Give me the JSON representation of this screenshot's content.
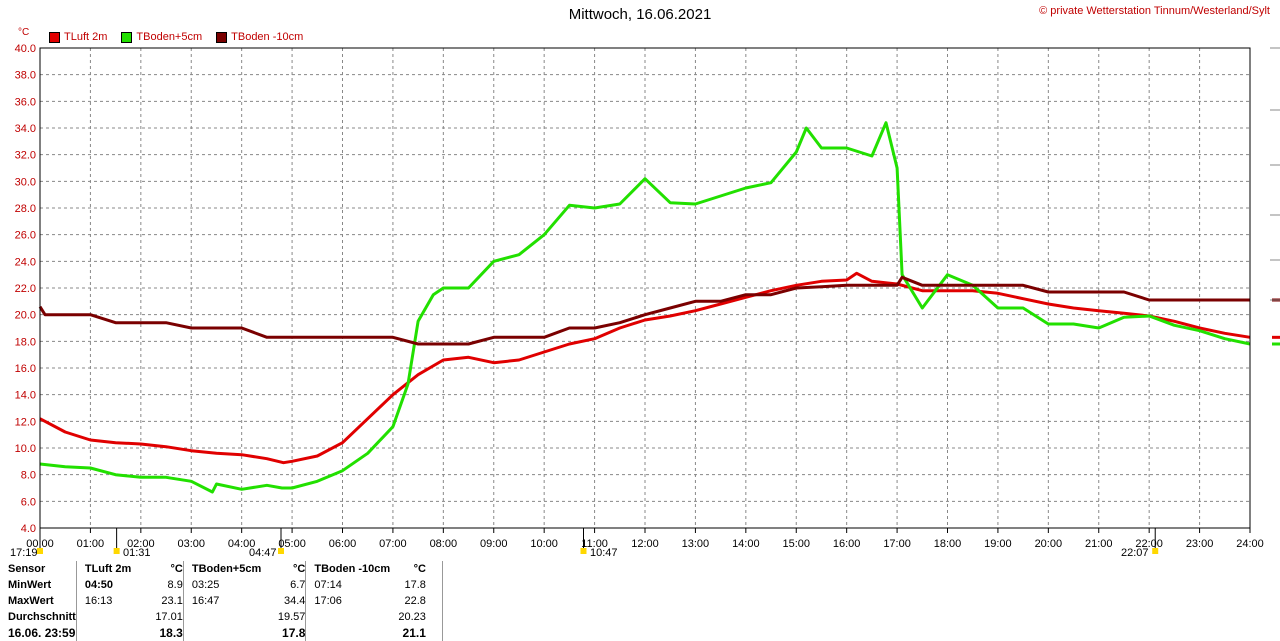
{
  "title": "Mittwoch, 16.06.2021",
  "copyright": "© private Wetterstation Tinnum/Westerland/Sylt",
  "unit": "°C",
  "legend": [
    {
      "name": "TLuft 2m",
      "color": "#e00000"
    },
    {
      "name": "TBoden+5cm",
      "color": "#22e000"
    },
    {
      "name": "TBoden -10cm",
      "color": "#7a0000"
    }
  ],
  "markers": [
    {
      "label": "17:19",
      "hour": 0.0
    },
    {
      "label": "01:31",
      "hour": 1.52
    },
    {
      "label": "04:47",
      "hour": 4.78
    },
    {
      "label": "10:47",
      "hour": 10.78
    },
    {
      "label": "22:07",
      "hour": 22.12
    }
  ],
  "chart_data": {
    "type": "line",
    "xlim": [
      0,
      24
    ],
    "ylim": [
      4,
      40
    ],
    "x_ticks": [
      "00:00",
      "01:00",
      "02:00",
      "03:00",
      "04:00",
      "05:00",
      "06:00",
      "07:00",
      "08:00",
      "09:00",
      "10:00",
      "11:00",
      "12:00",
      "13:00",
      "14:00",
      "15:00",
      "16:00",
      "17:00",
      "18:00",
      "19:00",
      "20:00",
      "21:00",
      "22:00",
      "23:00",
      "24:00"
    ],
    "y_ticks": [
      "4.0",
      "6.0",
      "8.0",
      "10.0",
      "12.0",
      "14.0",
      "16.0",
      "18.0",
      "20.0",
      "22.0",
      "24.0",
      "26.0",
      "28.0",
      "30.0",
      "32.0",
      "34.0",
      "36.0",
      "38.0",
      "40.0"
    ],
    "grid": true,
    "series": [
      {
        "name": "TLuft 2m",
        "color": "#e00000",
        "x": [
          0,
          0.5,
          1,
          1.5,
          2,
          2.5,
          3,
          3.5,
          4,
          4.5,
          4.83,
          5,
          5.5,
          6,
          6.5,
          7,
          7.5,
          8,
          8.5,
          9,
          9.5,
          10,
          10.5,
          11,
          11.5,
          12,
          12.5,
          13,
          13.5,
          14,
          14.5,
          15,
          15.5,
          16,
          16.2,
          16.5,
          17,
          17.5,
          18,
          18.5,
          19,
          19.5,
          20,
          20.5,
          21,
          21.5,
          22,
          22.5,
          23,
          23.5,
          24
        ],
        "y": [
          12.2,
          11.2,
          10.6,
          10.4,
          10.3,
          10.1,
          9.8,
          9.6,
          9.5,
          9.2,
          8.9,
          9.0,
          9.4,
          10.4,
          12.2,
          14.0,
          15.5,
          16.6,
          16.8,
          16.4,
          16.6,
          17.2,
          17.8,
          18.2,
          19.0,
          19.6,
          19.9,
          20.3,
          20.8,
          21.3,
          21.8,
          22.2,
          22.5,
          22.6,
          23.1,
          22.5,
          22.3,
          21.8,
          21.8,
          21.8,
          21.6,
          21.2,
          20.8,
          20.5,
          20.3,
          20.1,
          19.9,
          19.5,
          19.0,
          18.6,
          18.3
        ]
      },
      {
        "name": "TBoden+5cm",
        "color": "#22e000",
        "x": [
          0,
          0.5,
          1,
          1.5,
          2,
          2.5,
          3,
          3.42,
          3.5,
          4,
          4.5,
          4.8,
          5,
          5.5,
          6,
          6.5,
          7,
          7.3,
          7.5,
          7.8,
          8,
          8.5,
          9,
          9.5,
          10,
          10.5,
          11,
          11.5,
          12,
          12.5,
          13,
          13.5,
          14,
          14.5,
          15,
          15.2,
          15.5,
          16,
          16.5,
          16.78,
          17,
          17.1,
          17.5,
          18,
          18.5,
          19,
          19.5,
          20,
          20.5,
          21,
          21.5,
          22,
          22.5,
          23,
          23.5,
          24
        ],
        "y": [
          8.8,
          8.6,
          8.5,
          8.0,
          7.8,
          7.8,
          7.5,
          6.7,
          7.3,
          6.9,
          7.2,
          7.0,
          7.0,
          7.5,
          8.3,
          9.6,
          11.6,
          14.8,
          19.5,
          21.5,
          22.0,
          22.0,
          24.0,
          24.5,
          26.0,
          28.2,
          28.0,
          28.3,
          30.2,
          28.4,
          28.3,
          28.9,
          29.5,
          29.9,
          32.2,
          34.0,
          32.5,
          32.5,
          31.9,
          34.4,
          31.0,
          23.0,
          20.5,
          23.0,
          22.2,
          20.5,
          20.5,
          19.3,
          19.3,
          19.0,
          19.8,
          19.9,
          19.2,
          18.8,
          18.2,
          17.8
        ]
      },
      {
        "name": "TBoden -10cm",
        "color": "#7a0000",
        "x": [
          0,
          0.1,
          0.5,
          1,
          1.5,
          2,
          2.5,
          3,
          3.5,
          4,
          4.5,
          5,
          5.5,
          6,
          6.5,
          7,
          7.5,
          8,
          8.5,
          9,
          9.5,
          10,
          10.5,
          11,
          11.5,
          12,
          12.5,
          13,
          13.5,
          14,
          14.5,
          15,
          15.5,
          16,
          16.5,
          17,
          17.1,
          17.5,
          18,
          18.5,
          19,
          19.5,
          20,
          20.5,
          21,
          21.5,
          22,
          22.5,
          23,
          23.5,
          24
        ],
        "y": [
          20.6,
          20.0,
          20.0,
          20.0,
          19.4,
          19.4,
          19.4,
          19.0,
          19.0,
          19.0,
          18.3,
          18.3,
          18.3,
          18.3,
          18.3,
          18.3,
          17.8,
          17.8,
          17.8,
          18.3,
          18.3,
          18.3,
          19.0,
          19.0,
          19.4,
          20.0,
          20.5,
          21.0,
          21.0,
          21.5,
          21.5,
          22.0,
          22.1,
          22.2,
          22.2,
          22.2,
          22.8,
          22.2,
          22.2,
          22.2,
          22.2,
          22.2,
          21.7,
          21.7,
          21.7,
          21.7,
          21.1,
          21.1,
          21.1,
          21.1,
          21.1
        ]
      }
    ]
  },
  "stats": {
    "headers": [
      "Sensor",
      "TLuft 2m",
      "°C",
      "TBoden+5cm",
      "°C",
      "TBoden -10cm",
      "°C"
    ],
    "rows": [
      {
        "label": "MinWert",
        "c": [
          "04:50",
          "8.9",
          "03:25",
          "6.7",
          "07:14",
          "17.8"
        ]
      },
      {
        "label": "MaxWert",
        "c": [
          "16:13",
          "23.1",
          "16:47",
          "34.4",
          "17:06",
          "22.8"
        ]
      },
      {
        "label": "Durchschnitt",
        "c": [
          "",
          "17.01",
          "",
          "19.57",
          "",
          "20.23"
        ]
      },
      {
        "label": "16.06. 23:59",
        "c": [
          "",
          "18.3",
          "",
          "17.8",
          "",
          "21.1"
        ]
      }
    ]
  }
}
